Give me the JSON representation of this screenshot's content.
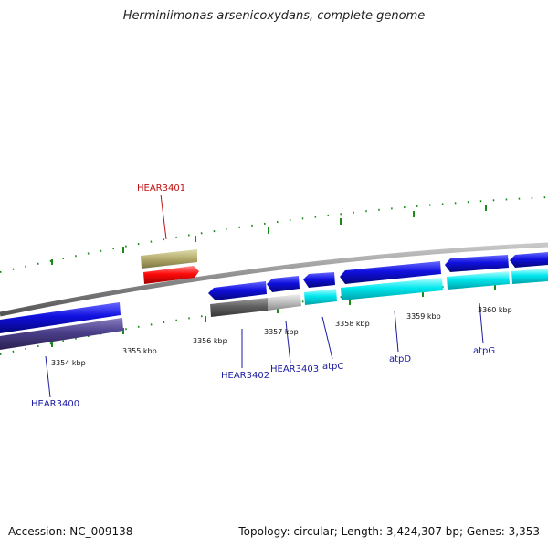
{
  "title": "Herminiimonas arsenicoxydans, complete genome",
  "footer": {
    "accession": "Accession: NC_009138",
    "topology": "Topology: circular; Length: 3,424,307 bp; Genes: 3,353"
  },
  "colors": {
    "backbone": "#8a8a8a",
    "tick": "#1a8a1a",
    "cds_blue": "#1010e0",
    "cds_cyan": "#00e8ee",
    "cds_dark_purple": "#4a3f8a",
    "cds_gray": "#606060",
    "cds_light_gray": "#c4c4c4",
    "cds_olive": "#b8b070",
    "cds_red": "#ff0a0a",
    "label_blue": "#1a1aa0",
    "label_red": "#c01010"
  },
  "scale_labels": [
    "3354 kbp",
    "3355 kbp",
    "3356 kbp",
    "3357 kbp",
    "3358 kbp",
    "3359 kbp",
    "3360 kbp"
  ],
  "gene_labels": [
    {
      "name": "HEAR3401",
      "color": "label_red"
    },
    {
      "name": "HEAR3400",
      "color": "label_blue"
    },
    {
      "name": "HEAR3402",
      "color": "label_blue"
    },
    {
      "name": "HEAR3403",
      "color": "label_blue"
    },
    {
      "name": "atpC",
      "color": "label_blue"
    },
    {
      "name": "atpD",
      "color": "label_blue"
    },
    {
      "name": "atpG",
      "color": "label_blue"
    }
  ]
}
